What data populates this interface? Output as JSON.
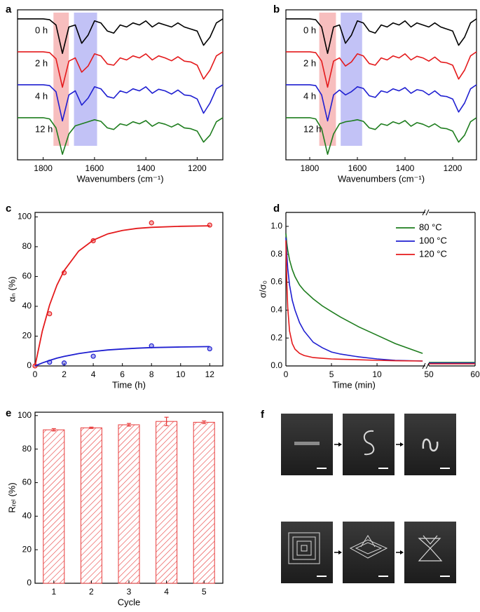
{
  "chart_data": [
    {
      "type": "spectra",
      "panel": "a",
      "x_label": "Wavenumbers (cm⁻¹)",
      "xlim": [
        1900,
        1100
      ],
      "xticks": [
        1800,
        1600,
        1400,
        1200
      ],
      "ylim": [
        0,
        1
      ],
      "bands": [
        {
          "color": "#f4a3a3",
          "range": [
            1760,
            1700
          ]
        },
        {
          "color": "#a8a8f2",
          "range": [
            1680,
            1590
          ]
        }
      ],
      "x": [
        1900,
        1875,
        1850,
        1825,
        1800,
        1775,
        1750,
        1725,
        1700,
        1675,
        1650,
        1625,
        1600,
        1575,
        1550,
        1525,
        1500,
        1475,
        1450,
        1425,
        1400,
        1375,
        1350,
        1325,
        1300,
        1275,
        1250,
        1225,
        1200,
        1175,
        1150,
        1125,
        1100
      ],
      "series": [
        {
          "name": "0 h",
          "color": "#000000",
          "values": [
            0.95,
            0.95,
            0.95,
            0.95,
            0.95,
            0.93,
            0.8,
            0.1,
            0.75,
            0.8,
            0.35,
            0.55,
            0.9,
            0.85,
            0.65,
            0.6,
            0.8,
            0.75,
            0.85,
            0.8,
            0.9,
            0.75,
            0.85,
            0.8,
            0.75,
            0.85,
            0.75,
            0.7,
            0.65,
            0.3,
            0.5,
            0.85,
            0.95
          ]
        },
        {
          "name": "2 h",
          "color": "#e41a1c",
          "values": [
            0.95,
            0.95,
            0.95,
            0.95,
            0.95,
            0.93,
            0.78,
            0.08,
            0.72,
            0.8,
            0.45,
            0.6,
            0.9,
            0.85,
            0.65,
            0.62,
            0.8,
            0.75,
            0.85,
            0.8,
            0.9,
            0.75,
            0.85,
            0.8,
            0.73,
            0.83,
            0.72,
            0.7,
            0.62,
            0.28,
            0.5,
            0.85,
            0.95
          ]
        },
        {
          "name": "4 h",
          "color": "#1f1fd1",
          "values": [
            0.95,
            0.95,
            0.95,
            0.95,
            0.95,
            0.93,
            0.78,
            0.06,
            0.7,
            0.8,
            0.45,
            0.62,
            0.9,
            0.85,
            0.66,
            0.62,
            0.8,
            0.75,
            0.85,
            0.8,
            0.9,
            0.74,
            0.84,
            0.8,
            0.72,
            0.82,
            0.7,
            0.68,
            0.6,
            0.25,
            0.5,
            0.85,
            0.95
          ]
        },
        {
          "name": "12 h",
          "color": "#1e7d1e",
          "values": [
            0.95,
            0.95,
            0.95,
            0.95,
            0.95,
            0.92,
            0.7,
            0.05,
            0.55,
            0.75,
            0.8,
            0.85,
            0.9,
            0.86,
            0.7,
            0.66,
            0.8,
            0.76,
            0.85,
            0.8,
            0.88,
            0.74,
            0.83,
            0.79,
            0.72,
            0.8,
            0.7,
            0.68,
            0.62,
            0.35,
            0.52,
            0.85,
            0.95
          ]
        }
      ]
    },
    {
      "type": "spectra",
      "panel": "b",
      "x_label": "Wavenumbers (cm⁻¹)",
      "xlim": [
        1900,
        1100
      ],
      "xticks": [
        1800,
        1600,
        1400,
        1200
      ],
      "ylim": [
        0,
        1
      ],
      "bands": [
        {
          "color": "#f4a3a3",
          "range": [
            1760,
            1690
          ]
        },
        {
          "color": "#a8a8f2",
          "range": [
            1670,
            1580
          ]
        }
      ],
      "x": [
        1900,
        1875,
        1850,
        1825,
        1800,
        1775,
        1750,
        1725,
        1700,
        1675,
        1650,
        1625,
        1600,
        1575,
        1550,
        1525,
        1500,
        1475,
        1450,
        1425,
        1400,
        1375,
        1350,
        1325,
        1300,
        1275,
        1250,
        1225,
        1200,
        1175,
        1150,
        1125,
        1100
      ],
      "series": [
        {
          "name": "0 h",
          "color": "#000000",
          "values": [
            0.95,
            0.95,
            0.95,
            0.95,
            0.95,
            0.93,
            0.75,
            0.1,
            0.75,
            0.8,
            0.35,
            0.55,
            0.9,
            0.85,
            0.65,
            0.6,
            0.8,
            0.75,
            0.85,
            0.8,
            0.9,
            0.75,
            0.85,
            0.8,
            0.75,
            0.85,
            0.75,
            0.7,
            0.65,
            0.3,
            0.5,
            0.85,
            0.95
          ]
        },
        {
          "name": "2 h",
          "color": "#e41a1c",
          "values": [
            0.95,
            0.95,
            0.95,
            0.95,
            0.95,
            0.93,
            0.72,
            0.08,
            0.72,
            0.8,
            0.6,
            0.7,
            0.9,
            0.85,
            0.66,
            0.62,
            0.8,
            0.75,
            0.85,
            0.8,
            0.9,
            0.75,
            0.84,
            0.8,
            0.72,
            0.82,
            0.7,
            0.68,
            0.62,
            0.28,
            0.5,
            0.85,
            0.95
          ]
        },
        {
          "name": "4 h",
          "color": "#1f1fd1",
          "values": [
            0.95,
            0.95,
            0.95,
            0.95,
            0.95,
            0.93,
            0.7,
            0.06,
            0.7,
            0.82,
            0.7,
            0.78,
            0.9,
            0.86,
            0.68,
            0.64,
            0.8,
            0.76,
            0.85,
            0.8,
            0.88,
            0.74,
            0.83,
            0.8,
            0.7,
            0.8,
            0.68,
            0.66,
            0.6,
            0.28,
            0.5,
            0.85,
            0.95
          ]
        },
        {
          "name": "12 h",
          "color": "#1e7d1e",
          "values": [
            0.95,
            0.95,
            0.95,
            0.95,
            0.95,
            0.92,
            0.68,
            0.05,
            0.55,
            0.8,
            0.85,
            0.87,
            0.9,
            0.86,
            0.7,
            0.66,
            0.8,
            0.76,
            0.85,
            0.8,
            0.88,
            0.74,
            0.83,
            0.79,
            0.72,
            0.8,
            0.7,
            0.68,
            0.62,
            0.35,
            0.52,
            0.85,
            0.95
          ]
        }
      ]
    },
    {
      "type": "scatter_fit",
      "panel": "c",
      "x_label": "Time (h)",
      "y_label": "αₙ (%)",
      "xlim": [
        0,
        12.9
      ],
      "xticks": [
        0,
        2,
        4,
        6,
        8,
        10,
        12
      ],
      "ylim": [
        0,
        103
      ],
      "yticks": [
        0,
        20,
        40,
        60,
        80,
        100
      ],
      "series": [
        {
          "color": "#e41a1c",
          "x": [
            0,
            1,
            2,
            4,
            8,
            12
          ],
          "values": [
            0,
            35,
            62.5,
            84,
            96,
            94.5
          ],
          "fit_x": [
            0,
            0.5,
            1,
            1.5,
            2,
            3,
            4,
            5,
            6,
            7,
            8,
            10,
            12
          ],
          "fit_values": [
            0,
            23.4,
            40.9,
            54.2,
            64.0,
            77.1,
            84.4,
            88.6,
            90.9,
            92.3,
            93.0,
            93.7,
            94.0
          ]
        },
        {
          "color": "#1f1fd1",
          "x": [
            1,
            2,
            4,
            8,
            12
          ],
          "values": [
            2.5,
            2,
            6.5,
            13.5,
            11.5
          ],
          "fit_x": [
            0,
            0.5,
            1,
            1.5,
            2,
            3,
            4,
            5,
            6,
            7,
            8,
            10,
            12
          ],
          "fit_values": [
            0,
            2.0,
            3.7,
            5.2,
            6.4,
            8.3,
            9.7,
            10.7,
            11.4,
            11.9,
            12.3,
            12.7,
            13.0
          ]
        }
      ]
    },
    {
      "type": "broken_line",
      "panel": "d",
      "x_label": "Time (min)",
      "y_label": "σ/σ₀",
      "segments": [
        {
          "xlim": [
            0,
            15.3
          ],
          "xticks": [
            0,
            5,
            10
          ]
        },
        {
          "xlim": [
            50,
            60
          ],
          "xticks": [
            50,
            60
          ]
        }
      ],
      "ylim": [
        0,
        1.1
      ],
      "yticks": [
        {
          "value": 0,
          "label": "0.0"
        },
        {
          "value": 0.2,
          "label": "0.2"
        },
        {
          "value": 0.4,
          "label": "0.4"
        },
        {
          "value": 0.6,
          "label": "0.6"
        },
        {
          "value": 0.8,
          "label": "0.8"
        },
        {
          "value": 1,
          "label": "1.0"
        }
      ],
      "legend": "upper right",
      "x": [
        0,
        0.1,
        0.2,
        0.4,
        0.7,
        1,
        1.5,
        2,
        3,
        4,
        5,
        6,
        8,
        10,
        12,
        15,
        50,
        60
      ],
      "series": [
        {
          "name": "80 °C",
          "color": "#1e7d1e",
          "values": [
            0.95,
            0.88,
            0.83,
            0.76,
            0.69,
            0.64,
            0.58,
            0.54,
            0.48,
            0.43,
            0.39,
            0.35,
            0.28,
            0.22,
            0.16,
            0.09,
            0.025,
            0.025
          ]
        },
        {
          "name": "100 °C",
          "color": "#1f1fd1",
          "values": [
            0.92,
            0.8,
            0.7,
            0.58,
            0.47,
            0.4,
            0.31,
            0.25,
            0.17,
            0.13,
            0.1,
            0.085,
            0.065,
            0.05,
            0.04,
            0.035,
            0.02,
            0.02
          ]
        },
        {
          "name": "120 °C",
          "color": "#e41a1c",
          "values": [
            0.9,
            0.6,
            0.42,
            0.25,
            0.16,
            0.12,
            0.09,
            0.075,
            0.06,
            0.055,
            0.05,
            0.048,
            0.044,
            0.04,
            0.037,
            0.035,
            0.015,
            0.015
          ]
        }
      ]
    },
    {
      "type": "bar",
      "panel": "e",
      "x_label": "Cycle",
      "y_label": "Rᵣₑₗ (%)",
      "categories": [
        "1",
        "2",
        "3",
        "4",
        "5"
      ],
      "values": [
        91.5,
        92.7,
        94.5,
        96.5,
        96
      ],
      "errors": [
        0.7,
        0.4,
        0.8,
        2.5,
        0.8
      ],
      "color": "#e83b3b",
      "ylim": [
        0,
        102
      ],
      "yticks": [
        0,
        20,
        40,
        60,
        80,
        100
      ]
    }
  ],
  "photo_panel": {
    "panel": "f"
  }
}
